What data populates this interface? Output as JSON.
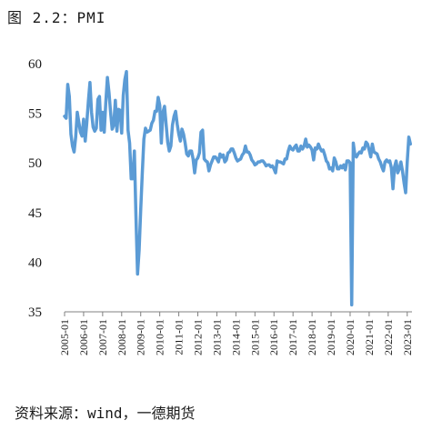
{
  "figure": {
    "title": "图 2.2：PMI",
    "source": "资料来源：wind，一德期货",
    "line_color": "#5B9BD5"
  },
  "chart_data": {
    "type": "line",
    "title": "",
    "xlabel": "",
    "ylabel": "",
    "ylim": [
      35,
      60
    ],
    "yticks": [
      35,
      40,
      45,
      50,
      55,
      60
    ],
    "xlim": [
      "2005-01",
      "2023-04"
    ],
    "xticks": [
      "2005-01",
      "2006-01",
      "2007-01",
      "2008-01",
      "2009-01",
      "2010-01",
      "2011-01",
      "2012-01",
      "2013-01",
      "2014-01",
      "2015-01",
      "2016-01",
      "2017-01",
      "2018-01",
      "2019-01",
      "2020-01",
      "2021-01",
      "2022-01",
      "2023-01"
    ],
    "grid": false,
    "legend": "none",
    "series": [
      {
        "x": [
          "2005-01",
          "2005-02",
          "2005-03",
          "2005-04",
          "2005-05",
          "2005-06",
          "2005-07",
          "2005-08",
          "2005-09",
          "2005-10",
          "2005-11",
          "2005-12",
          "2006-01",
          "2006-02",
          "2006-03",
          "2006-04",
          "2006-05",
          "2006-06",
          "2006-07",
          "2006-08",
          "2006-09",
          "2006-10",
          "2006-11",
          "2006-12",
          "2007-01",
          "2007-02",
          "2007-03",
          "2007-04",
          "2007-05",
          "2007-06",
          "2007-07",
          "2007-08",
          "2007-09",
          "2007-10",
          "2007-11",
          "2007-12",
          "2008-01",
          "2008-02",
          "2008-03",
          "2008-04",
          "2008-05",
          "2008-06",
          "2008-07",
          "2008-08",
          "2008-09",
          "2008-10",
          "2008-11",
          "2008-12",
          "2009-01",
          "2009-02",
          "2009-03",
          "2009-04",
          "2009-05",
          "2009-06",
          "2009-07",
          "2009-08",
          "2009-09",
          "2009-10",
          "2009-11",
          "2009-12",
          "2010-01",
          "2010-02",
          "2010-03",
          "2010-04",
          "2010-05",
          "2010-06",
          "2010-07",
          "2010-08",
          "2010-09",
          "2010-10",
          "2010-11",
          "2010-12",
          "2011-01",
          "2011-02",
          "2011-03",
          "2011-04",
          "2011-05",
          "2011-06",
          "2011-07",
          "2011-08",
          "2011-09",
          "2011-10",
          "2011-11",
          "2011-12",
          "2012-01",
          "2012-02",
          "2012-03",
          "2012-04",
          "2012-05",
          "2012-06",
          "2012-07",
          "2012-08",
          "2012-09",
          "2012-10",
          "2012-11",
          "2012-12",
          "2013-01",
          "2013-02",
          "2013-03",
          "2013-04",
          "2013-05",
          "2013-06",
          "2013-07",
          "2013-08",
          "2013-09",
          "2013-10",
          "2013-11",
          "2013-12",
          "2014-01",
          "2014-02",
          "2014-03",
          "2014-04",
          "2014-05",
          "2014-06",
          "2014-07",
          "2014-08",
          "2014-09",
          "2014-10",
          "2014-11",
          "2014-12",
          "2015-01",
          "2015-02",
          "2015-03",
          "2015-04",
          "2015-05",
          "2015-06",
          "2015-07",
          "2015-08",
          "2015-09",
          "2015-10",
          "2015-11",
          "2015-12",
          "2016-01",
          "2016-02",
          "2016-03",
          "2016-04",
          "2016-05",
          "2016-06",
          "2016-07",
          "2016-08",
          "2016-09",
          "2016-10",
          "2016-11",
          "2016-12",
          "2017-01",
          "2017-02",
          "2017-03",
          "2017-04",
          "2017-05",
          "2017-06",
          "2017-07",
          "2017-08",
          "2017-09",
          "2017-10",
          "2017-11",
          "2017-12",
          "2018-01",
          "2018-02",
          "2018-03",
          "2018-04",
          "2018-05",
          "2018-06",
          "2018-07",
          "2018-08",
          "2018-09",
          "2018-10",
          "2018-11",
          "2018-12",
          "2019-01",
          "2019-02",
          "2019-03",
          "2019-04",
          "2019-05",
          "2019-06",
          "2019-07",
          "2019-08",
          "2019-09",
          "2019-10",
          "2019-11",
          "2019-12",
          "2020-01",
          "2020-02",
          "2020-03",
          "2020-04",
          "2020-05",
          "2020-06",
          "2020-07",
          "2020-08",
          "2020-09",
          "2020-10",
          "2020-11",
          "2020-12",
          "2021-01",
          "2021-02",
          "2021-03",
          "2021-04",
          "2021-05",
          "2021-06",
          "2021-07",
          "2021-08",
          "2021-09",
          "2021-10",
          "2021-11",
          "2021-12",
          "2022-01",
          "2022-02",
          "2022-03",
          "2022-04",
          "2022-05",
          "2022-06",
          "2022-07",
          "2022-08",
          "2022-09",
          "2022-10",
          "2022-11",
          "2022-12",
          "2023-01",
          "2023-02",
          "2023-03"
        ],
        "values": [
          54.7,
          54.5,
          57.9,
          56.7,
          52.9,
          51.7,
          51.1,
          52.6,
          55.1,
          54.1,
          53.1,
          52.7,
          54.4,
          52.2,
          54.0,
          56.2,
          58.1,
          55.1,
          53.6,
          53.2,
          53.5,
          56.4,
          56.7,
          53.3,
          55.1,
          53.1,
          56.1,
          58.6,
          57.1,
          55.1,
          53.4,
          53.8,
          56.3,
          53.2,
          55.4,
          55.3,
          53.0,
          56.8,
          58.4,
          59.2,
          53.3,
          52.0,
          48.4,
          48.4,
          51.2,
          44.6,
          38.8,
          41.2,
          45.3,
          49.0,
          52.4,
          53.5,
          53.1,
          53.2,
          53.3,
          54.0,
          54.3,
          55.2,
          55.2,
          56.6,
          55.8,
          52.0,
          55.1,
          55.7,
          53.9,
          52.1,
          51.2,
          51.7,
          53.8,
          54.7,
          55.2,
          53.9,
          52.9,
          52.2,
          53.4,
          52.9,
          52.0,
          50.9,
          50.7,
          51.2,
          51.2,
          50.4,
          49.0,
          50.3,
          50.5,
          51.0,
          53.1,
          53.3,
          50.4,
          50.2,
          50.1,
          49.2,
          49.8,
          50.2,
          50.6,
          50.6,
          50.4,
          50.1,
          50.9,
          50.6,
          50.8,
          50.1,
          50.3,
          51.0,
          51.1,
          51.4,
          51.4,
          51.0,
          50.5,
          50.2,
          50.3,
          50.4,
          50.8,
          51.0,
          51.7,
          51.1,
          51.1,
          50.8,
          50.3,
          50.1,
          49.8,
          49.9,
          50.1,
          50.1,
          50.2,
          50.2,
          50.0,
          49.7,
          49.8,
          49.8,
          49.6,
          49.7,
          49.4,
          49.0,
          50.2,
          50.1,
          50.1,
          50.0,
          49.9,
          50.4,
          50.4,
          51.2,
          51.7,
          51.4,
          51.3,
          51.6,
          51.8,
          51.2,
          51.2,
          51.7,
          51.4,
          51.7,
          52.4,
          51.6,
          51.8,
          51.6,
          51.3,
          50.3,
          51.5,
          51.4,
          51.9,
          51.5,
          51.2,
          51.3,
          50.8,
          50.2,
          50.0,
          49.4,
          49.5,
          49.2,
          50.5,
          50.1,
          49.4,
          49.4,
          49.7,
          49.5,
          49.8,
          49.3,
          50.2,
          50.2,
          50.0,
          35.7,
          52.0,
          50.8,
          50.6,
          50.9,
          51.1,
          51.0,
          51.5,
          51.4,
          52.1,
          51.9,
          51.3,
          50.6,
          51.9,
          51.1,
          51.0,
          50.9,
          50.4,
          50.1,
          49.6,
          49.2,
          50.1,
          50.3,
          50.1,
          50.2,
          49.5,
          47.4,
          49.6,
          50.2,
          49.0,
          49.4,
          50.1,
          49.2,
          48.0,
          47.0,
          50.1,
          52.6,
          51.9
        ]
      }
    ]
  }
}
